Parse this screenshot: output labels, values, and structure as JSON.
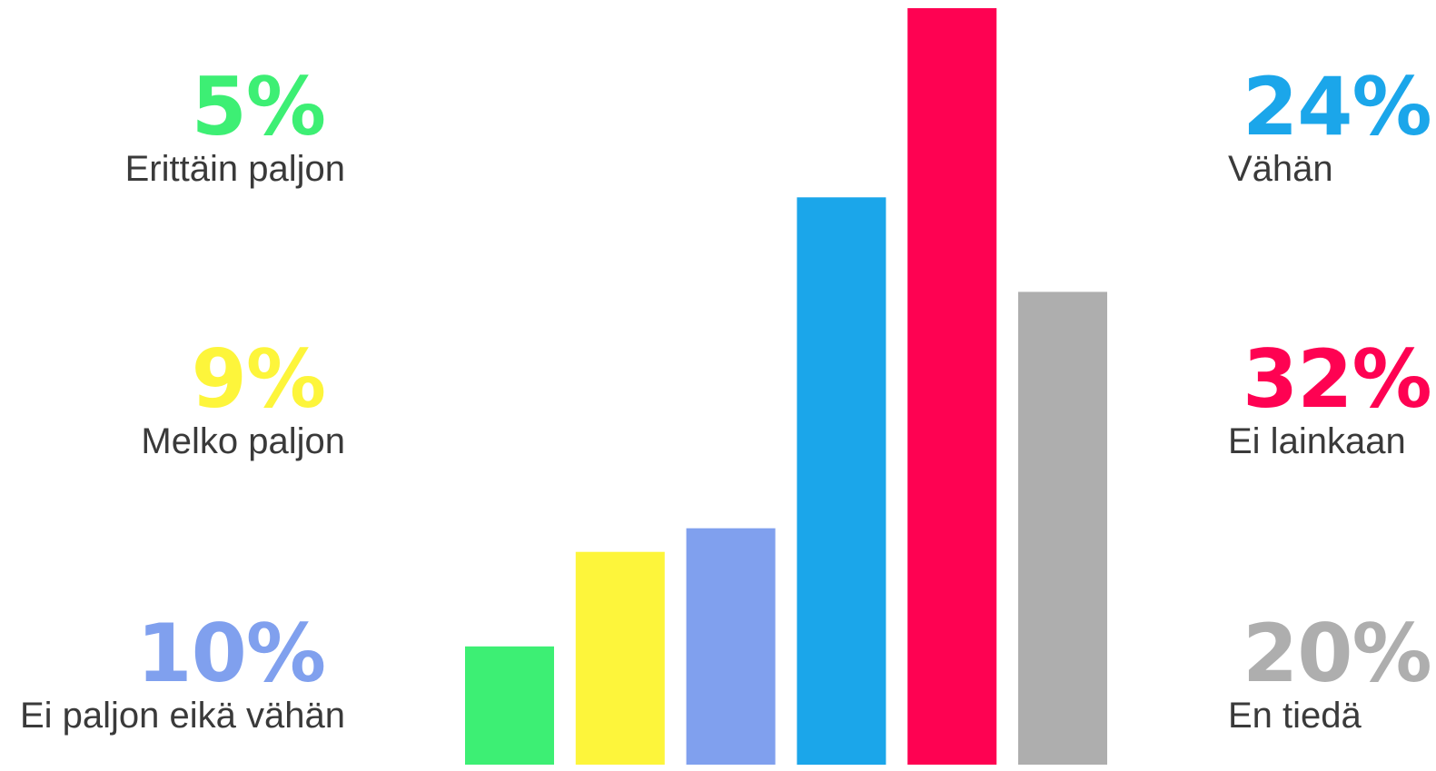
{
  "chart_data": {
    "type": "bar",
    "categories": [
      "Erittäin paljon",
      "Melko paljon",
      "Ei paljon eikä vähän",
      "Vähän",
      "Ei lainkaan",
      "En tiedä"
    ],
    "values": [
      5,
      9,
      10,
      24,
      32,
      20
    ],
    "value_labels": [
      "5%",
      "9%",
      "10%",
      "24%",
      "32%",
      "20%"
    ],
    "colors": [
      "#3def74",
      "#fdf53b",
      "#80a0ee",
      "#1ba6ea",
      "#fe0252",
      "#aeaeae"
    ],
    "title": "",
    "xlabel": "",
    "ylabel": "",
    "ylim": [
      0,
      32
    ],
    "grid": false,
    "legend": "left and right of bars"
  }
}
